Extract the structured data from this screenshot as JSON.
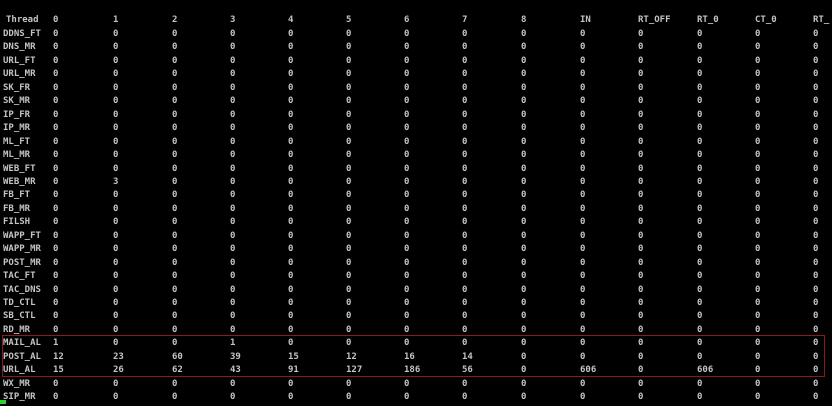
{
  "table": {
    "header": [
      "Thread",
      "0",
      "1",
      "2",
      "3",
      "4",
      "5",
      "6",
      "7",
      "8",
      "IN",
      "RT_OFF",
      "RT_0",
      "CT_0",
      "RT_"
    ],
    "rows": [
      [
        "DDNS_FT",
        0,
        0,
        0,
        0,
        0,
        0,
        0,
        0,
        0,
        0,
        0,
        0,
        0,
        0
      ],
      [
        "DNS_MR",
        0,
        0,
        0,
        0,
        0,
        0,
        0,
        0,
        0,
        0,
        0,
        0,
        0,
        0
      ],
      [
        "URL_FT",
        0,
        0,
        0,
        0,
        0,
        0,
        0,
        0,
        0,
        0,
        0,
        0,
        0,
        0
      ],
      [
        "URL_MR",
        0,
        0,
        0,
        0,
        0,
        0,
        0,
        0,
        0,
        0,
        0,
        0,
        0,
        0
      ],
      [
        "SK_FR",
        0,
        0,
        0,
        0,
        0,
        0,
        0,
        0,
        0,
        0,
        0,
        0,
        0,
        0
      ],
      [
        "SK_MR",
        0,
        0,
        0,
        0,
        0,
        0,
        0,
        0,
        0,
        0,
        0,
        0,
        0,
        0
      ],
      [
        "IP_FR",
        0,
        0,
        0,
        0,
        0,
        0,
        0,
        0,
        0,
        0,
        0,
        0,
        0,
        0
      ],
      [
        "IP_MR",
        0,
        0,
        0,
        0,
        0,
        0,
        0,
        0,
        0,
        0,
        0,
        0,
        0,
        0
      ],
      [
        "ML_FT",
        0,
        0,
        0,
        0,
        0,
        0,
        0,
        0,
        0,
        0,
        0,
        0,
        0,
        0
      ],
      [
        "ML_MR",
        0,
        0,
        0,
        0,
        0,
        0,
        0,
        0,
        0,
        0,
        0,
        0,
        0,
        0
      ],
      [
        "WEB_FT",
        0,
        0,
        0,
        0,
        0,
        0,
        0,
        0,
        0,
        0,
        0,
        0,
        0,
        0
      ],
      [
        "WEB_MR",
        0,
        3,
        0,
        0,
        0,
        0,
        0,
        0,
        0,
        0,
        0,
        0,
        0,
        0
      ],
      [
        "FB_FT",
        0,
        0,
        0,
        0,
        0,
        0,
        0,
        0,
        0,
        0,
        0,
        0,
        0,
        0
      ],
      [
        "FB_MR",
        0,
        0,
        0,
        0,
        0,
        0,
        0,
        0,
        0,
        0,
        0,
        0,
        0,
        0
      ],
      [
        "FILSH",
        0,
        0,
        0,
        0,
        0,
        0,
        0,
        0,
        0,
        0,
        0,
        0,
        0,
        0
      ],
      [
        "WAPP_FT",
        0,
        0,
        0,
        0,
        0,
        0,
        0,
        0,
        0,
        0,
        0,
        0,
        0,
        0
      ],
      [
        "WAPP_MR",
        0,
        0,
        0,
        0,
        0,
        0,
        0,
        0,
        0,
        0,
        0,
        0,
        0,
        0
      ],
      [
        "POST_MR",
        0,
        0,
        0,
        0,
        0,
        0,
        0,
        0,
        0,
        0,
        0,
        0,
        0,
        0
      ],
      [
        "TAC_FT",
        0,
        0,
        0,
        0,
        0,
        0,
        0,
        0,
        0,
        0,
        0,
        0,
        0,
        0
      ],
      [
        "TAC_DNS",
        0,
        0,
        0,
        0,
        0,
        0,
        0,
        0,
        0,
        0,
        0,
        0,
        0,
        0
      ],
      [
        "TD_CTL",
        0,
        0,
        0,
        0,
        0,
        0,
        0,
        0,
        0,
        0,
        0,
        0,
        0,
        0
      ],
      [
        "SB_CTL",
        0,
        0,
        0,
        0,
        0,
        0,
        0,
        0,
        0,
        0,
        0,
        0,
        0,
        0
      ],
      [
        "RD_MR",
        0,
        0,
        0,
        0,
        0,
        0,
        0,
        0,
        0,
        0,
        0,
        0,
        0,
        0
      ],
      [
        "MAIL_AL",
        1,
        0,
        0,
        1,
        0,
        0,
        0,
        0,
        0,
        0,
        0,
        0,
        0,
        0
      ],
      [
        "POST_AL",
        12,
        23,
        60,
        39,
        15,
        12,
        16,
        14,
        0,
        0,
        0,
        0,
        0,
        0
      ],
      [
        "URL_AL",
        15,
        26,
        62,
        43,
        91,
        127,
        186,
        56,
        0,
        606,
        0,
        606,
        0,
        0
      ],
      [
        "WX_MR",
        0,
        0,
        0,
        0,
        0,
        0,
        0,
        0,
        0,
        0,
        0,
        0,
        0,
        0
      ],
      [
        "SIP_MR",
        0,
        0,
        0,
        0,
        0,
        0,
        0,
        0,
        0,
        0,
        0,
        0,
        0,
        0
      ]
    ]
  }
}
